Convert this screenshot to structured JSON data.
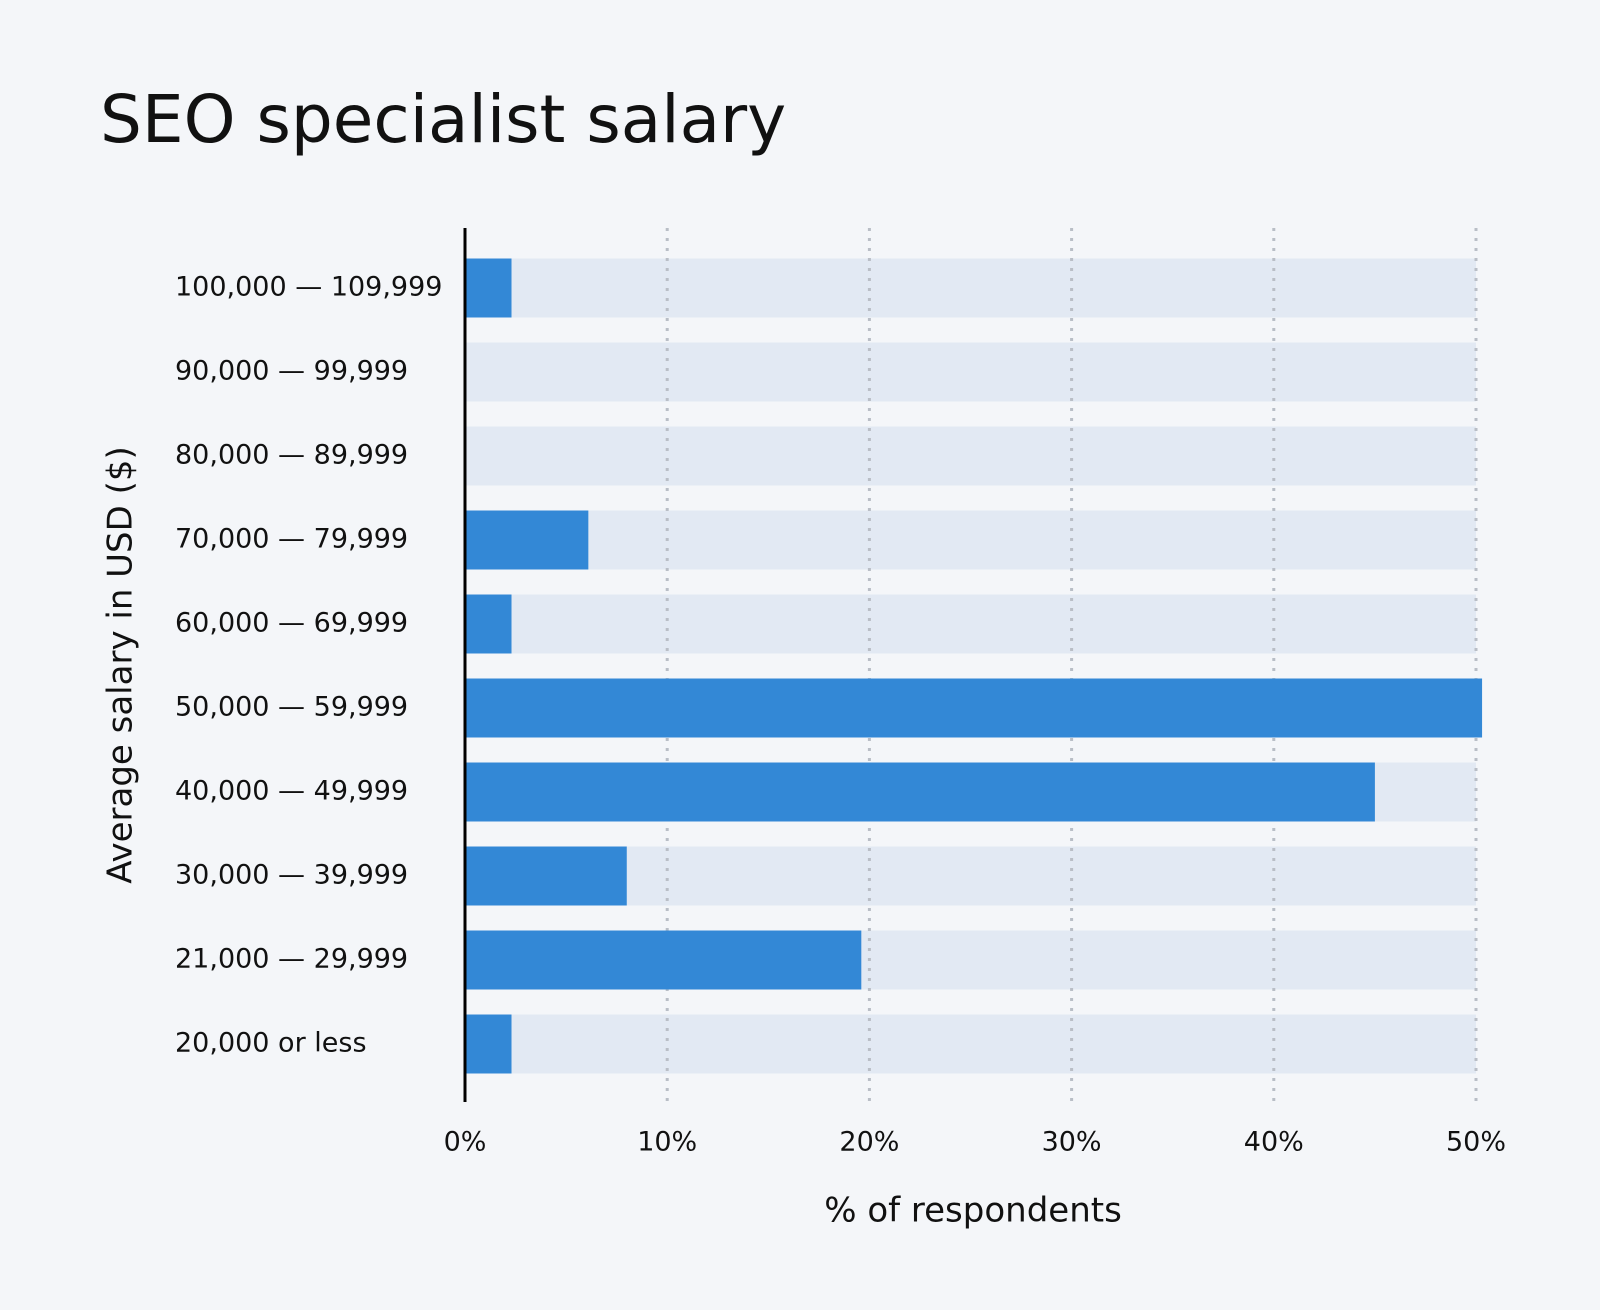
{
  "chart_data": {
    "type": "barh",
    "title": "SEO specialist salary",
    "x_label": "% of respondents",
    "y_label": "Average salary in USD ($)",
    "categories": [
      "100,000 — 109,999",
      "90,000 — 99,999",
      "80,000 — 89,999",
      "70,000 — 79,999",
      "60,000 — 69,999",
      "50,000 — 59,999",
      "40,000 — 49,999",
      "30,000 — 39,999",
      "21,000 — 29,999",
      "20,000 or less"
    ],
    "values": [
      2.3,
      0,
      0,
      6.1,
      2.3,
      50.3,
      45.0,
      8.0,
      19.6,
      2.3
    ],
    "color": "#3388d6",
    "track_color": "#e2e9f3",
    "xlim": [
      0,
      50
    ],
    "xticks": [
      {
        "value": 0,
        "label": "0%"
      },
      {
        "value": 10,
        "label": "10%"
      },
      {
        "value": 20,
        "label": "20%"
      },
      {
        "value": 30,
        "label": "30%"
      },
      {
        "value": 40,
        "label": "40%"
      },
      {
        "value": 50,
        "label": "50%"
      }
    ],
    "grid": true
  }
}
